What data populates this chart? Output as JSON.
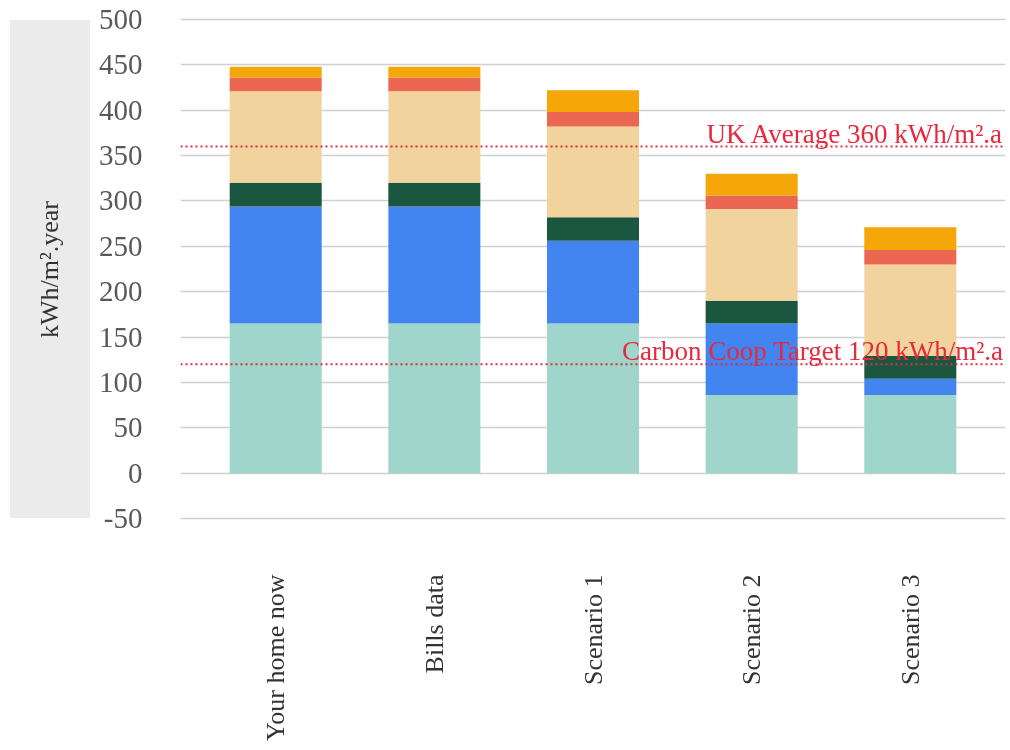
{
  "chart_data": {
    "type": "bar",
    "stacked": true,
    "ylabel": "kWh/m².year",
    "categories": [
      "Your home now",
      "Bills data",
      "Scenario 1",
      "Scenario 2",
      "Scenario 3"
    ],
    "series": [
      {
        "color": "#9fd5ca",
        "values": [
          165,
          165,
          165,
          86,
          86
        ]
      },
      {
        "color": "#4285f0",
        "values": [
          129,
          129,
          91,
          79,
          18
        ]
      },
      {
        "color": "#1b5640",
        "values": [
          26,
          26,
          26,
          25,
          25
        ]
      },
      {
        "color": "#f0d39d",
        "values": [
          101,
          101,
          100,
          101,
          101
        ]
      },
      {
        "color": "#ec6751",
        "values": [
          15,
          15,
          16,
          15,
          16
        ]
      },
      {
        "color": "#f5a608",
        "values": [
          12,
          12,
          24,
          24,
          25
        ]
      }
    ],
    "ylim": [
      -50,
      500
    ],
    "yticks": [
      -50,
      0,
      50,
      100,
      150,
      200,
      250,
      300,
      350,
      400,
      450,
      500
    ],
    "grid": "y",
    "ref_lines": [
      {
        "axis": "y",
        "value": 360,
        "label": "UK Average 360 kWh/m².a",
        "color": "#e8283c",
        "line_style": "dotted"
      },
      {
        "axis": "y",
        "value": 120,
        "label": "Carbon Coop Target 120 kWh/m².a",
        "color": "#e8283c",
        "line_style": "dotted"
      }
    ]
  }
}
